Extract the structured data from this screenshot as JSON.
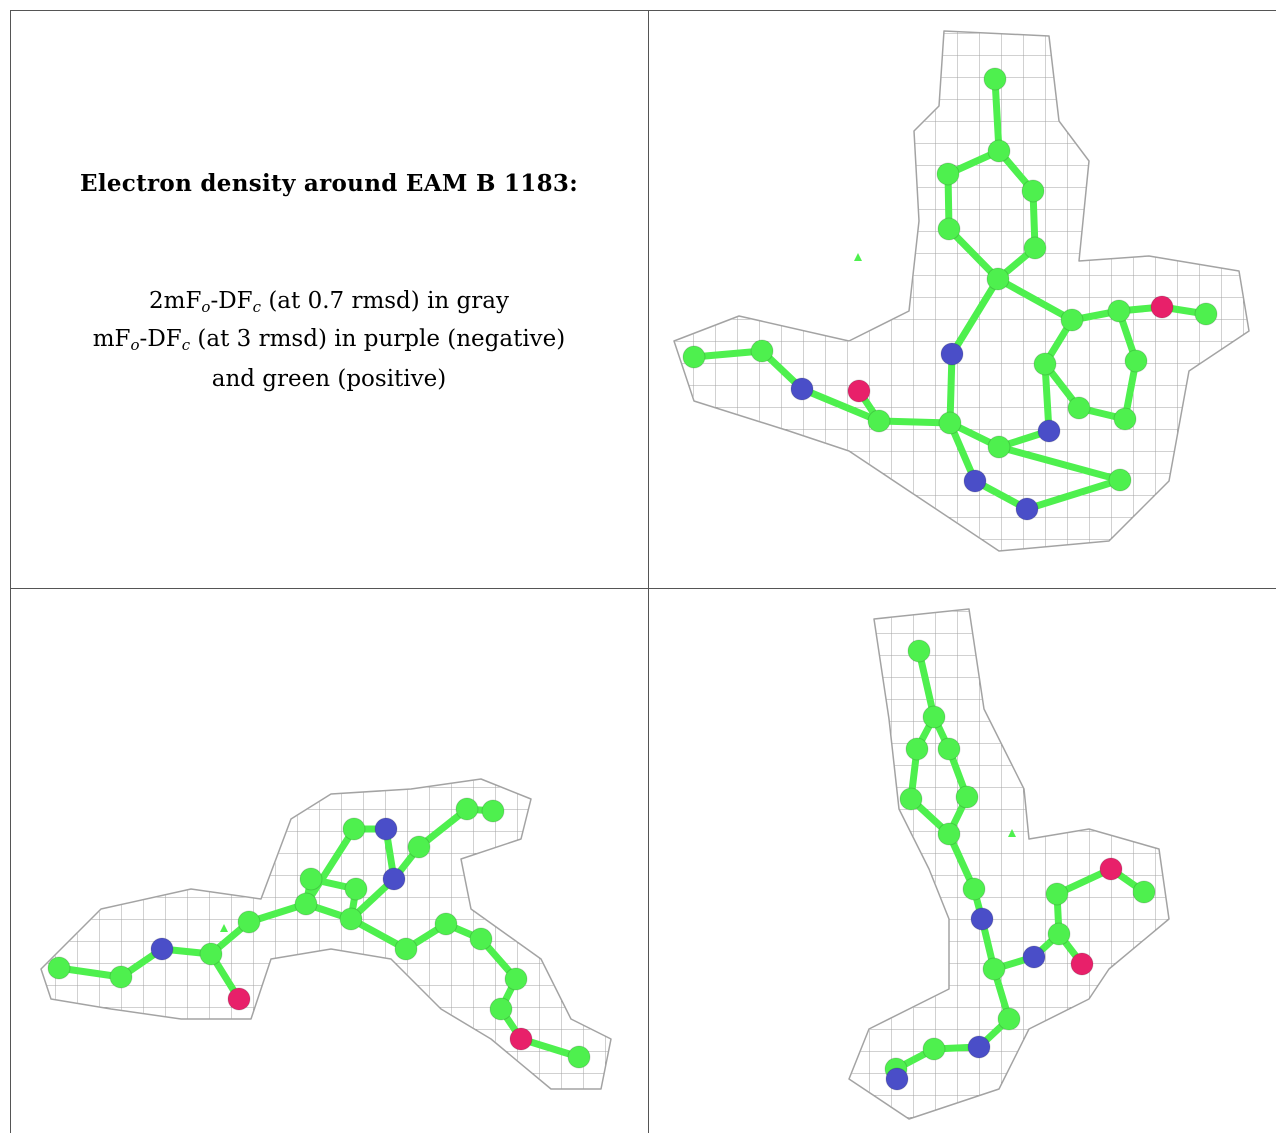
{
  "caption": {
    "title": "Electron density around EAM B 1183:",
    "line1": {
      "a": "2mF",
      "o": "o",
      "b": "-DF",
      "c": "c",
      "rest": " (at 0.7 rmsd) in gray"
    },
    "line2": {
      "a": "mF",
      "o": "o",
      "b": "-DF",
      "c": "c",
      "rest": " (at 3 rmsd) in purple (negative)"
    },
    "line3": "and green (positive)"
  },
  "colors": {
    "carbon": "#4ef04e",
    "nitrogen": "#4a4ec8",
    "oxygen": "#e8206a",
    "mesh": "#9a9a9a",
    "border": "#555555"
  },
  "panels": [
    {
      "name": "view-top-right",
      "view": "top"
    },
    {
      "name": "view-bottom-left",
      "view": "side"
    },
    {
      "name": "view-bottom-right",
      "view": "end"
    }
  ]
}
